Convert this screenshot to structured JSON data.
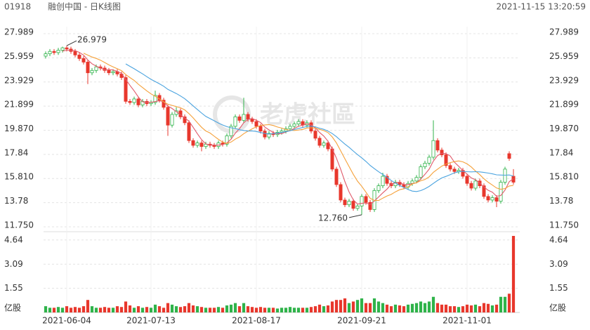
{
  "header": {
    "code": "01918",
    "title": "融创中国 - 日K线图",
    "timestamp": "2021-11-15 13:20:59"
  },
  "watermark": "老虎社區",
  "chart_data": {
    "type": "candlestick",
    "open": [
      26.1,
      26.3,
      26.5,
      26.4,
      26.6,
      26.8,
      26.7,
      26.5,
      26.2,
      25.9,
      25.6,
      24.7,
      24.9,
      25.2,
      25.1,
      24.9,
      24.7,
      24.8,
      24.6,
      24.3,
      22.3,
      22.2,
      22.5,
      22.0,
      22.3,
      22.1,
      22.2,
      22.8,
      22.4,
      21.8,
      20.3,
      21.2,
      21.5,
      21.0,
      20.5,
      19.0,
      18.6,
      18.8,
      18.5,
      18.7,
      18.6,
      18.5,
      18.8,
      18.7,
      19.4,
      20.2,
      21.0,
      20.7,
      21.2,
      20.8,
      20.6,
      20.2,
      19.8,
      19.3,
      19.6,
      19.5,
      19.7,
      19.8,
      20.0,
      20.2,
      20.4,
      20.6,
      20.3,
      20.5,
      19.8,
      19.2,
      18.6,
      18.8,
      18.3,
      16.6,
      15.3,
      14.0,
      13.6,
      13.9,
      13.3,
      13.5,
      14.3,
      13.8,
      13.2,
      14.8,
      15.2,
      16.0,
      15.4,
      15.2,
      15.5,
      15.3,
      15.1,
      15.4,
      15.6,
      15.9,
      16.8,
      17.1,
      17.6,
      19.0,
      18.2,
      17.8,
      16.9,
      16.6,
      16.4,
      16.5,
      16.0,
      15.4,
      15.0,
      15.6,
      15.2,
      14.3,
      14.0,
      14.2,
      13.9,
      15.5,
      17.9,
      16.0
    ],
    "high": [
      26.5,
      26.7,
      26.7,
      26.8,
      26.9,
      26.979,
      26.9,
      26.7,
      26.4,
      26.1,
      25.8,
      25.1,
      25.4,
      25.4,
      25.3,
      25.1,
      25.0,
      25.0,
      24.8,
      24.5,
      22.5,
      22.7,
      22.7,
      22.5,
      22.5,
      22.4,
      23.2,
      23.0,
      22.6,
      22.0,
      21.4,
      21.8,
      21.7,
      21.2,
      20.7,
      19.2,
      19.0,
      19.0,
      18.9,
      18.9,
      18.8,
      19.0,
      19.0,
      19.6,
      20.4,
      21.2,
      21.2,
      22.6,
      21.4,
      21.0,
      20.8,
      20.4,
      20.0,
      19.8,
      19.8,
      19.9,
      20.0,
      20.2,
      20.4,
      20.6,
      20.8,
      20.8,
      20.7,
      20.7,
      20.0,
      19.4,
      19.0,
      19.0,
      18.5,
      16.8,
      15.5,
      14.2,
      14.1,
      14.1,
      13.7,
      14.5,
      14.5,
      14.0,
      15.0,
      15.4,
      16.3,
      16.2,
      15.6,
      15.7,
      15.7,
      15.5,
      15.6,
      15.8,
      16.1,
      17.0,
      17.3,
      17.8,
      20.7,
      19.2,
      18.4,
      18.0,
      17.1,
      16.8,
      16.7,
      16.7,
      16.2,
      15.6,
      15.8,
      15.8,
      15.4,
      14.5,
      14.4,
      14.4,
      15.7,
      16.8,
      18.1,
      16.6
    ],
    "low": [
      25.9,
      26.1,
      26.2,
      26.2,
      26.4,
      26.5,
      26.3,
      26.0,
      25.7,
      25.4,
      23.75,
      24.5,
      24.7,
      24.9,
      24.7,
      24.5,
      24.5,
      24.4,
      24.1,
      22.1,
      22.0,
      22.0,
      21.8,
      21.8,
      21.9,
      21.9,
      22.0,
      22.2,
      21.6,
      19.4,
      20.1,
      21.0,
      20.8,
      20.3,
      18.8,
      18.4,
      18.4,
      18.1,
      18.3,
      18.4,
      18.3,
      18.3,
      18.5,
      18.5,
      19.2,
      20.0,
      20.5,
      20.5,
      20.6,
      20.4,
      20.0,
      19.6,
      19.1,
      19.1,
      19.3,
      19.3,
      19.5,
      19.6,
      19.8,
      20.0,
      20.2,
      20.1,
      20.1,
      19.6,
      19.0,
      18.4,
      18.4,
      18.1,
      16.4,
      15.1,
      13.8,
      13.4,
      13.4,
      13.1,
      13.1,
      12.76,
      13.6,
      13.0,
      13.0,
      14.6,
      15.0,
      15.2,
      15.0,
      15.0,
      15.1,
      14.9,
      14.9,
      15.2,
      15.4,
      15.7,
      16.6,
      16.9,
      17.4,
      18.0,
      17.6,
      16.7,
      16.4,
      16.2,
      16.2,
      15.8,
      15.2,
      14.8,
      14.8,
      15.0,
      14.1,
      13.8,
      13.8,
      13.4,
      13.7,
      15.3,
      17.3,
      15.3
    ],
    "close": [
      26.3,
      26.5,
      26.4,
      26.6,
      26.8,
      26.7,
      26.5,
      26.2,
      25.9,
      25.6,
      24.7,
      24.9,
      25.2,
      25.1,
      24.9,
      24.7,
      24.8,
      24.6,
      24.3,
      22.3,
      22.2,
      22.5,
      22.0,
      22.3,
      22.1,
      22.2,
      22.8,
      22.4,
      21.8,
      20.3,
      21.2,
      21.5,
      21.0,
      20.5,
      19.0,
      18.6,
      18.8,
      18.5,
      18.7,
      18.6,
      18.5,
      18.8,
      18.7,
      19.4,
      20.2,
      21.0,
      20.7,
      21.2,
      20.8,
      20.6,
      20.2,
      19.8,
      19.3,
      19.6,
      19.5,
      19.7,
      19.8,
      20.0,
      20.2,
      20.4,
      20.6,
      20.3,
      20.5,
      19.8,
      19.2,
      18.6,
      18.8,
      18.3,
      16.6,
      15.3,
      14.0,
      13.6,
      13.9,
      13.3,
      13.5,
      14.3,
      13.8,
      13.2,
      14.8,
      15.2,
      16.0,
      15.4,
      15.2,
      15.5,
      15.3,
      15.1,
      15.4,
      15.6,
      15.9,
      16.8,
      17.1,
      17.6,
      19.0,
      18.2,
      17.8,
      16.9,
      16.6,
      16.4,
      16.5,
      16.0,
      15.4,
      15.0,
      15.6,
      15.2,
      14.3,
      14.0,
      14.2,
      13.9,
      15.5,
      16.6,
      17.5,
      15.5
    ],
    "volume": [
      0.4,
      0.3,
      0.3,
      0.35,
      0.3,
      0.4,
      0.3,
      0.35,
      0.3,
      0.4,
      0.8,
      0.4,
      0.3,
      0.3,
      0.35,
      0.3,
      0.3,
      0.4,
      0.35,
      0.7,
      0.45,
      0.3,
      0.4,
      0.3,
      0.35,
      0.3,
      0.5,
      0.4,
      0.3,
      0.6,
      0.5,
      0.4,
      0.35,
      0.4,
      0.6,
      0.45,
      0.4,
      0.35,
      0.3,
      0.3,
      0.3,
      0.35,
      0.3,
      0.45,
      0.5,
      0.6,
      0.4,
      0.6,
      0.4,
      0.35,
      0.3,
      0.35,
      0.3,
      0.3,
      0.3,
      0.25,
      0.3,
      0.3,
      0.35,
      0.3,
      0.3,
      0.3,
      0.3,
      0.35,
      0.4,
      0.5,
      0.4,
      0.45,
      0.7,
      0.8,
      0.8,
      0.9,
      0.6,
      0.7,
      0.8,
      0.9,
      0.6,
      0.6,
      0.9,
      0.7,
      0.6,
      0.5,
      0.4,
      0.5,
      0.45,
      0.4,
      0.5,
      0.55,
      0.6,
      0.7,
      0.6,
      0.7,
      1.0,
      0.6,
      0.5,
      0.5,
      0.4,
      0.4,
      0.35,
      0.4,
      0.5,
      0.45,
      0.5,
      0.4,
      0.6,
      0.55,
      0.45,
      0.5,
      1.0,
      1.0,
      1.2,
      4.9
    ],
    "up_color": "#2fb34a",
    "down_color": "#e8372c",
    "xlim": [
      -0.5,
      112.5
    ],
    "xticks": [
      {
        "value": 5,
        "label": "2021-06-04"
      },
      {
        "value": 25,
        "label": "2021-07-13"
      },
      {
        "value": 50,
        "label": "2021-08-17"
      },
      {
        "value": 75,
        "label": "2021-09-21"
      },
      {
        "value": 100,
        "label": "2021-11-01"
      }
    ],
    "ylim": [
      11.75,
      27.989
    ],
    "yticks": [
      {
        "value": 11.75,
        "label": "11.750"
      },
      13.78,
      {
        "value": 15.81,
        "label": "15.810"
      },
      17.84,
      {
        "value": 19.87,
        "label": "19.870"
      },
      21.899,
      23.929,
      25.959,
      27.989
    ],
    "y2lim": [
      0,
      4.9
    ],
    "y2ticks": [
      1.55,
      3.09,
      4.64
    ],
    "volume_unit": "亿股",
    "grid": true,
    "value_labels": {
      "max_high": "26.979",
      "min_low": "12.760"
    }
  }
}
